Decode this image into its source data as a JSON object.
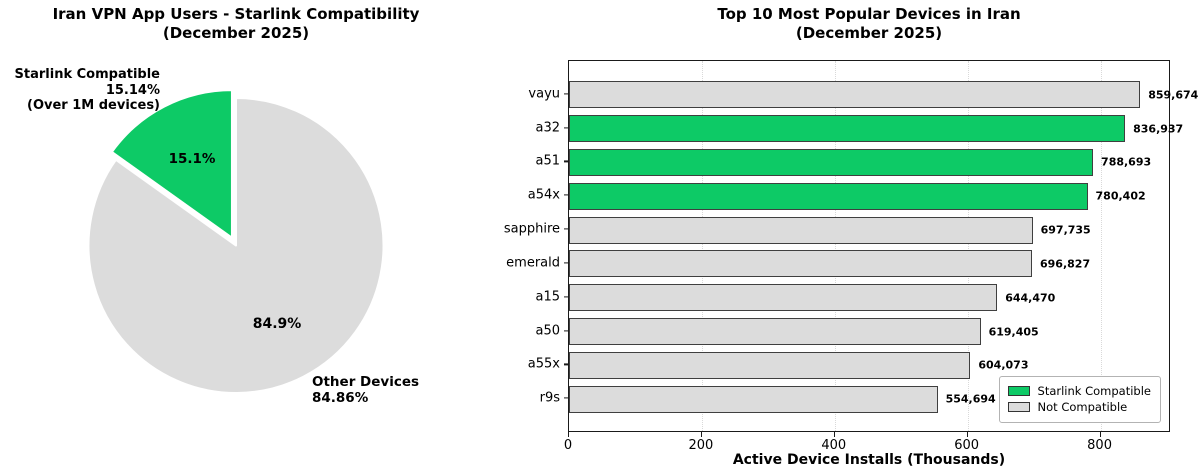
{
  "figure": {
    "background_color": "#ffffff",
    "accent_green": "#0dca66",
    "neutral_gray": "#dcdcdc"
  },
  "chart_data": [
    {
      "type": "pie",
      "title": "Iran VPN App Users - Starlink Compatibility\n(December 2025)",
      "title_lines": [
        "Iran VPN App Users - Starlink Compatibility",
        "(December 2025)"
      ],
      "start_angle": 90,
      "counterclock": true,
      "slices": [
        {
          "label": "Starlink Compatible",
          "pct_label": "15.14%",
          "note": "(Over 1M devices)",
          "value": 15.14,
          "autopct": "15.1%",
          "color": "#0dca66",
          "explode": 0.06
        },
        {
          "label": "Other Devices",
          "pct_label": "84.86%",
          "note": "",
          "value": 84.86,
          "autopct": "84.9%",
          "color": "#dcdcdc",
          "explode": 0
        }
      ]
    },
    {
      "type": "bar",
      "orientation": "horizontal",
      "title": "Top 10 Most Popular Devices in Iran\n(December 2025)",
      "title_lines": [
        "Top 10 Most Popular Devices in Iran",
        "(December 2025)"
      ],
      "xlabel": "Active Device Installs (Thousands)",
      "ylabel": "",
      "categories": [
        "vayu",
        "a32",
        "a51",
        "a54x",
        "sapphire",
        "emerald",
        "a15",
        "a50",
        "a55x",
        "r9s"
      ],
      "values_thousands": [
        859.674,
        836.937,
        788.693,
        780.402,
        697.735,
        696.827,
        644.47,
        619.405,
        604.073,
        554.694
      ],
      "value_labels": [
        "859,674",
        "836,937",
        "788,693",
        "780,402",
        "697,735",
        "696,827",
        "644,470",
        "619,405",
        "604,073",
        "554,694"
      ],
      "starlink_compatible": [
        false,
        true,
        true,
        true,
        false,
        false,
        false,
        false,
        false,
        false
      ],
      "xticks": [
        0,
        200,
        400,
        600,
        800
      ],
      "xlim": [
        0,
        906
      ],
      "grid": "vertical-dotted",
      "legend_position": "lower-right",
      "legend": [
        {
          "label": "Starlink Compatible",
          "color": "#0dca66"
        },
        {
          "label": "Not Compatible",
          "color": "#dcdcdc"
        }
      ],
      "bar_colors": {
        "compatible": "#0dca66",
        "not_compatible": "#dcdcdc"
      }
    }
  ]
}
